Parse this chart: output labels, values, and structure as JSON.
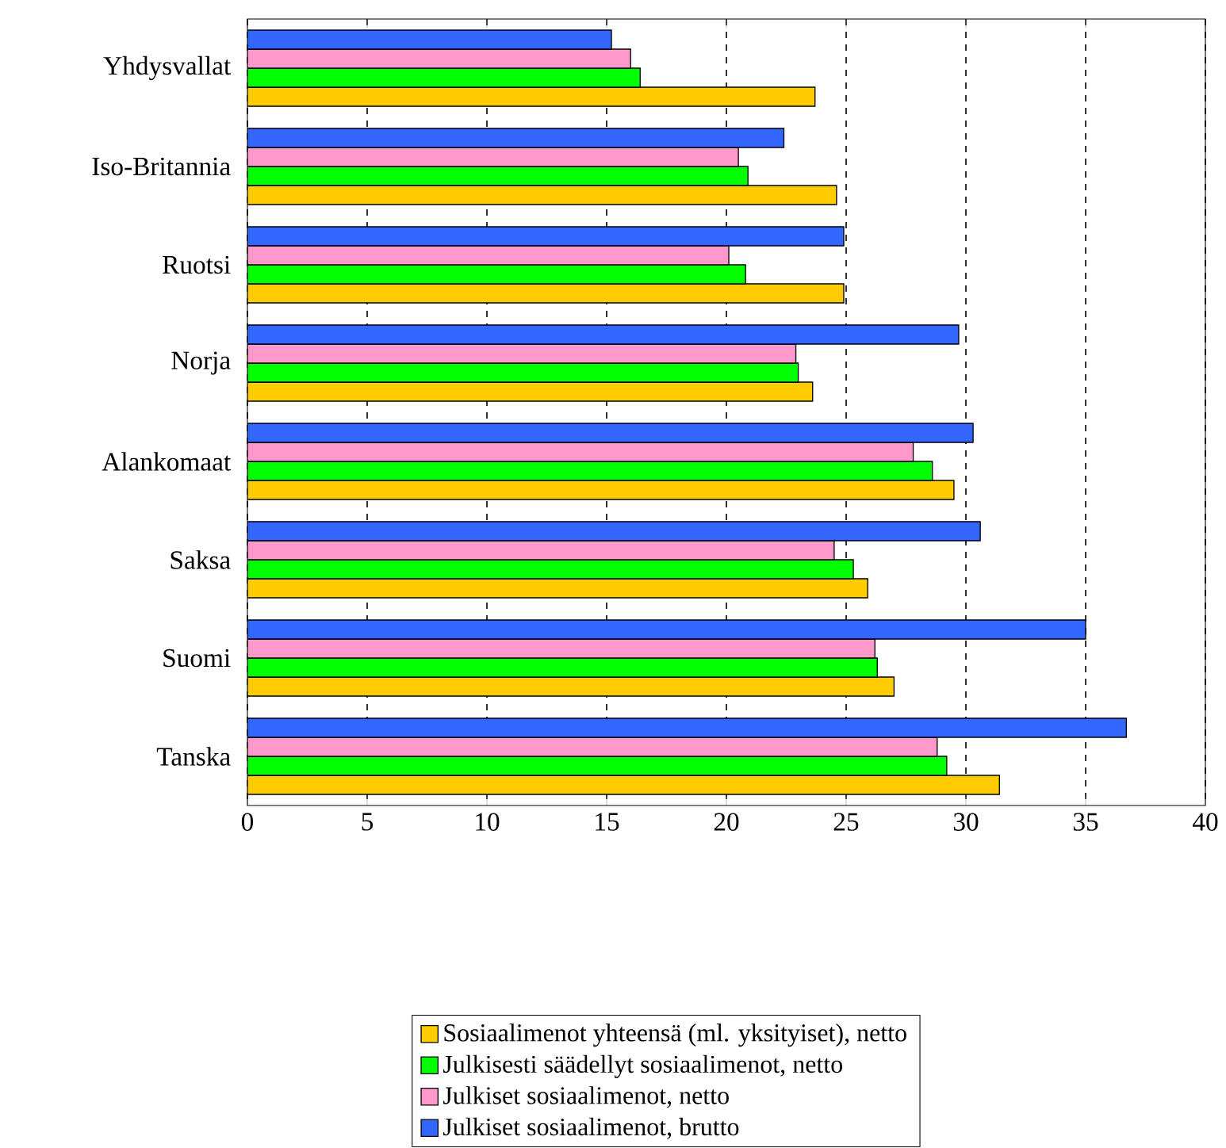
{
  "chart_data": {
    "type": "bar",
    "orientation": "horizontal",
    "categories": [
      "Yhdysvallat",
      "Iso-Britannia",
      "Ruotsi",
      "Norja",
      "Alankomaat",
      "Saksa",
      "Suomi",
      "Tanska"
    ],
    "series": [
      {
        "name": "Sosiaalimenot yhteensä (ml. yksityiset), netto",
        "color": "#ffcc00",
        "values": [
          23.7,
          24.6,
          24.9,
          23.6,
          29.5,
          25.9,
          27.0,
          31.4
        ]
      },
      {
        "name": "Julkisesti säädellyt sosiaalimenot, netto",
        "color": "#00ff00",
        "values": [
          16.4,
          20.9,
          20.8,
          23.0,
          28.6,
          25.3,
          26.3,
          29.2
        ]
      },
      {
        "name": "Julkiset sosiaalimenot, netto",
        "color": "#ff99cc",
        "values": [
          16.0,
          20.5,
          20.1,
          22.9,
          27.8,
          24.5,
          26.2,
          28.8
        ]
      },
      {
        "name": "Julkiset sosiaalimenot, brutto",
        "color": "#3366ff",
        "values": [
          15.2,
          22.4,
          24.9,
          29.7,
          30.3,
          30.6,
          35.0,
          36.7
        ]
      }
    ],
    "xlim": [
      0,
      40
    ],
    "xticks": [
      0,
      5,
      10,
      15,
      20,
      25,
      30,
      35,
      40
    ],
    "grid": "x",
    "legend": "bottom"
  }
}
